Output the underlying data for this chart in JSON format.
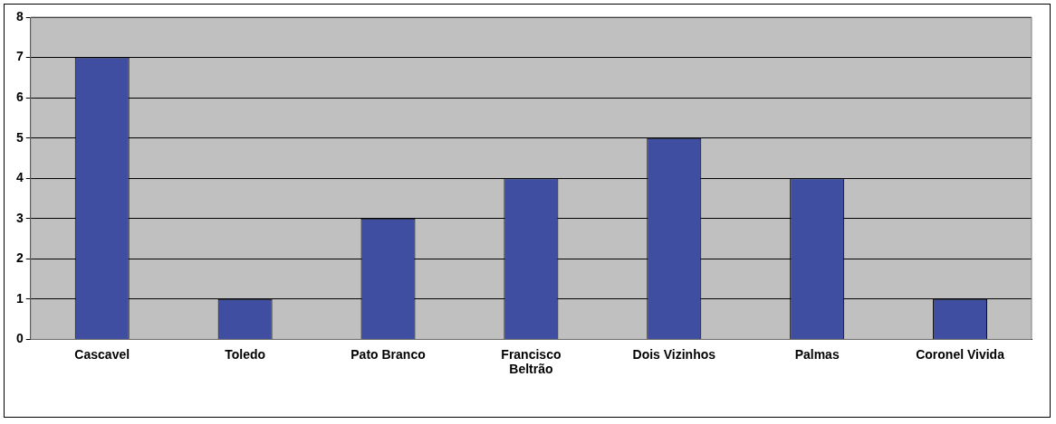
{
  "chart_data": {
    "type": "bar",
    "categories": [
      "Cascavel",
      "Toledo",
      "Pato Branco",
      "Francisco Beltrão",
      "Dois Vizinhos",
      "Palmas",
      "Coronel Vivida"
    ],
    "values": [
      7,
      1,
      3,
      4,
      5,
      4,
      1
    ],
    "color": "#3f4ea0",
    "ylim": [
      0,
      8
    ],
    "yticks": [
      0,
      1,
      2,
      3,
      4,
      5,
      6,
      7,
      8
    ],
    "grid": "y",
    "legend": false
  }
}
